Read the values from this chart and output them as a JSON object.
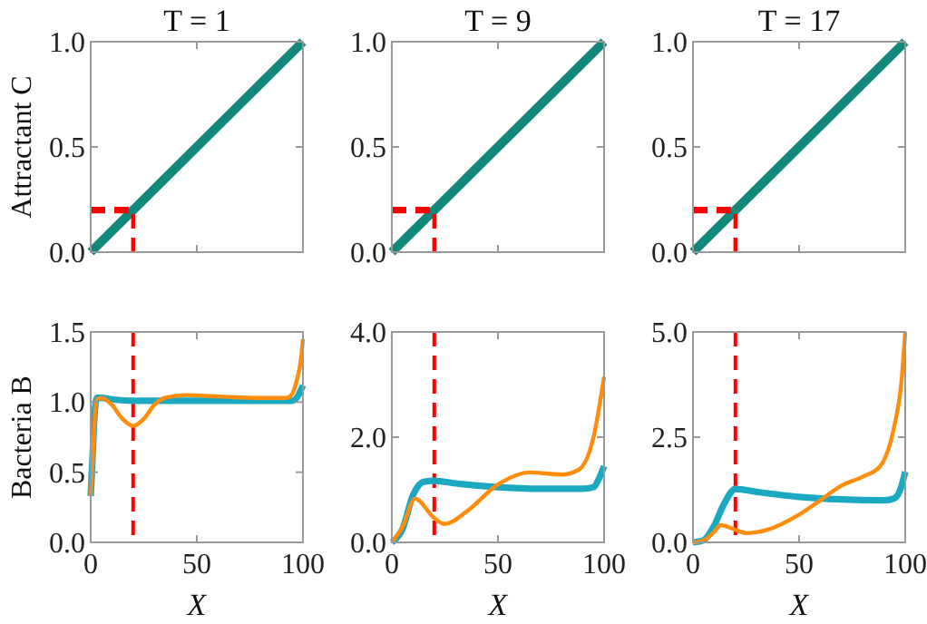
{
  "chart_data": [
    {
      "type": "line",
      "title": "T = 1",
      "ylabel": "Attractant C",
      "xlim": [
        0,
        100
      ],
      "xticks": [
        {
          "value": 0,
          "label": null
        },
        {
          "value": 50,
          "label": null
        },
        {
          "value": 100,
          "label": null
        }
      ],
      "ylim": [
        0,
        1
      ],
      "yticks": [
        {
          "value": 0,
          "label": "0.0"
        },
        {
          "value": 0.5,
          "label": "0.5"
        },
        {
          "value": 1,
          "label": "1.0"
        }
      ],
      "tick_labels": "y",
      "grid": false,
      "series": [
        {
          "color": "#11887a",
          "x": [
            0,
            100
          ],
          "values": [
            0,
            1
          ]
        },
        {
          "color": "#ff0000",
          "line_style": "dashed",
          "x": [
            0,
            20
          ],
          "values": [
            0.2,
            0.2
          ]
        },
        {
          "color": "#ff0000",
          "line_style": "dashed",
          "x": [
            20,
            20
          ],
          "values": [
            0,
            0.2
          ]
        }
      ]
    },
    {
      "type": "line",
      "title": "T = 9",
      "xlim": [
        0,
        100
      ],
      "xticks": [
        {
          "value": 0,
          "label": null
        },
        {
          "value": 50,
          "label": null
        },
        {
          "value": 100,
          "label": null
        }
      ],
      "ylim": [
        0,
        1
      ],
      "yticks": [
        {
          "value": 0,
          "label": "0.0"
        },
        {
          "value": 0.5,
          "label": "0.5"
        },
        {
          "value": 1,
          "label": "1.0"
        }
      ],
      "tick_labels": "y",
      "grid": false,
      "series": [
        {
          "color": "#11887a",
          "x": [
            0,
            100
          ],
          "values": [
            0,
            1
          ]
        },
        {
          "color": "#ff0000",
          "line_style": "dashed",
          "x": [
            0,
            20
          ],
          "values": [
            0.2,
            0.2
          ]
        },
        {
          "color": "#ff0000",
          "line_style": "dashed",
          "x": [
            20,
            20
          ],
          "values": [
            0,
            0.2
          ]
        }
      ]
    },
    {
      "type": "line",
      "title": "T = 17",
      "xlim": [
        0,
        100
      ],
      "xticks": [
        {
          "value": 0,
          "label": null
        },
        {
          "value": 50,
          "label": null
        },
        {
          "value": 100,
          "label": null
        }
      ],
      "ylim": [
        0,
        1
      ],
      "yticks": [
        {
          "value": 0,
          "label": "0.0"
        },
        {
          "value": 0.5,
          "label": "0.5"
        },
        {
          "value": 1,
          "label": "1.0"
        }
      ],
      "tick_labels": "y",
      "grid": false,
      "series": [
        {
          "color": "#11887a",
          "x": [
            0,
            100
          ],
          "values": [
            0,
            1
          ]
        },
        {
          "color": "#ff0000",
          "line_style": "dashed",
          "x": [
            0,
            20
          ],
          "values": [
            0.2,
            0.2
          ]
        },
        {
          "color": "#ff0000",
          "line_style": "dashed",
          "x": [
            20,
            20
          ],
          "values": [
            0,
            0.2
          ]
        }
      ]
    },
    {
      "type": "line",
      "xlabel": "X",
      "ylabel": "Bacteria B",
      "xlim": [
        0,
        100
      ],
      "xticks": [
        0,
        50,
        100
      ],
      "ylim": [
        0,
        1.5
      ],
      "yticks": [
        {
          "value": 0,
          "label": "0.0"
        },
        {
          "value": 0.5,
          "label": "0.5"
        },
        {
          "value": 1,
          "label": "1.0"
        },
        {
          "value": 1.5,
          "label": "1.5"
        }
      ],
      "grid": false,
      "ref_lines": [
        {
          "axis": "x",
          "value": 20,
          "color": "#ff0000",
          "line_style": "dashed"
        }
      ],
      "series": [
        {
          "color": "#1ba9c1",
          "x": [
            0,
            1,
            2,
            3,
            5,
            10,
            20,
            50,
            90,
            95,
            97,
            100
          ],
          "values": [
            0.33,
            0.65,
            0.95,
            1.03,
            1.03,
            1.02,
            1.01,
            1.01,
            1.01,
            1.01,
            1.03,
            1.12
          ]
        },
        {
          "color": "#ff8c0a",
          "x": [
            0,
            1,
            2,
            3,
            5,
            10,
            15,
            20,
            25,
            30,
            35,
            45,
            60,
            80,
            92,
            95,
            97,
            99,
            100
          ],
          "values": [
            0.33,
            0.6,
            0.9,
            1.02,
            1.03,
            0.98,
            0.88,
            0.83,
            0.88,
            0.98,
            1.03,
            1.05,
            1.04,
            1.03,
            1.03,
            1.06,
            1.15,
            1.3,
            1.45
          ]
        }
      ]
    },
    {
      "type": "line",
      "xlabel": "X",
      "xlim": [
        0,
        100
      ],
      "xticks": [
        0,
        50,
        100
      ],
      "ylim": [
        0,
        4
      ],
      "yticks": [
        {
          "value": 0,
          "label": "0.0"
        },
        {
          "value": 2,
          "label": "2.0"
        },
        {
          "value": 4,
          "label": "4.0"
        }
      ],
      "grid": false,
      "ref_lines": [
        {
          "axis": "x",
          "value": 20,
          "color": "#ff0000",
          "line_style": "dashed"
        }
      ],
      "series": [
        {
          "color": "#1ba9c1",
          "x": [
            0,
            5,
            10,
            15,
            20,
            30,
            50,
            70,
            90,
            95,
            98,
            100
          ],
          "values": [
            0,
            0.25,
            0.9,
            1.15,
            1.17,
            1.12,
            1.05,
            1.02,
            1.02,
            1.05,
            1.25,
            1.45
          ]
        },
        {
          "color": "#ff8c0a",
          "x": [
            0,
            5,
            11,
            20,
            25,
            35,
            50,
            65,
            80,
            88,
            95,
            100
          ],
          "values": [
            0,
            0.29,
            0.83,
            0.46,
            0.35,
            0.58,
            1.1,
            1.33,
            1.29,
            1.38,
            2.0,
            3.15
          ]
        }
      ]
    },
    {
      "type": "line",
      "xlabel": "X",
      "xlim": [
        0,
        100
      ],
      "xticks": [
        0,
        50,
        100
      ],
      "ylim": [
        0,
        5
      ],
      "yticks": [
        {
          "value": 0,
          "label": "0.0"
        },
        {
          "value": 2.5,
          "label": "2.5"
        },
        {
          "value": 5,
          "label": "5.0"
        }
      ],
      "grid": false,
      "ref_lines": [
        {
          "axis": "x",
          "value": 20,
          "color": "#ff0000",
          "line_style": "dashed"
        }
      ],
      "series": [
        {
          "color": "#1ba9c1",
          "x": [
            0,
            5,
            10,
            15,
            20,
            30,
            50,
            70,
            90,
            95,
            98,
            100
          ],
          "values": [
            0,
            0.05,
            0.4,
            0.95,
            1.27,
            1.2,
            1.08,
            1.02,
            1.0,
            1.05,
            1.3,
            1.68
          ]
        },
        {
          "color": "#ff8c0a",
          "x": [
            0,
            5,
            10,
            13,
            20,
            25,
            35,
            50,
            60,
            70,
            80,
            88,
            95,
            98,
            100
          ],
          "values": [
            0,
            0.05,
            0.25,
            0.41,
            0.3,
            0.22,
            0.3,
            0.66,
            1.0,
            1.35,
            1.56,
            1.8,
            2.8,
            3.7,
            5.0
          ]
        }
      ]
    }
  ]
}
